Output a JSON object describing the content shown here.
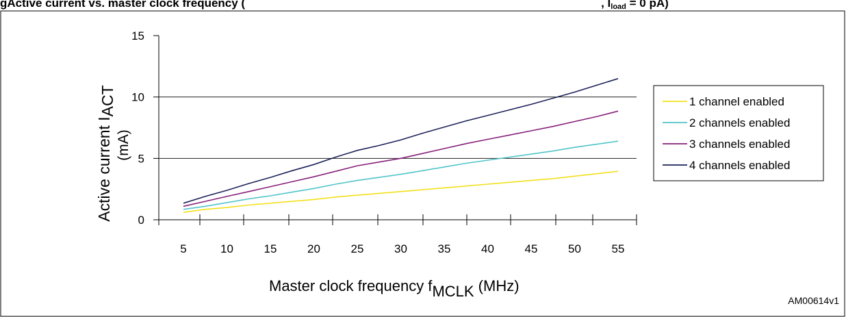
{
  "caption": {
    "fig_prefix": "g",
    "fig_text": "Active current vs. master clock frequency (",
    "cond_text": ", I",
    "cond_sub": "load",
    "cond_tail": " = 0 pA)"
  },
  "chart_data": {
    "type": "line",
    "title": "",
    "xlabel": {
      "main": "Master clock frequency f",
      "sub": "MCLK",
      "tail": " (MHz)"
    },
    "ylabel": {
      "main": "Active current I",
      "sub": "ACT",
      "line2": "(mA)"
    },
    "x_ticks": [
      "5",
      "10",
      "15",
      "20",
      "25",
      "30",
      "35",
      "40",
      "45",
      "50",
      "55"
    ],
    "y_ticks": [
      "0",
      "5",
      "10",
      "15"
    ],
    "ylim": [
      0,
      15
    ],
    "grid": "horizontal",
    "legend_position": "right",
    "x": [
      5,
      7.5,
      10,
      12.5,
      15,
      17.5,
      20,
      22.5,
      25,
      27.5,
      30,
      32.5,
      35,
      37.5,
      40,
      42.5,
      45,
      47.5,
      50,
      52.5,
      55
    ],
    "series": [
      {
        "name": "1 channel enabled",
        "color": "#f2e01a",
        "values": [
          0.6,
          0.85,
          1.0,
          1.2,
          1.35,
          1.5,
          1.65,
          1.85,
          2.0,
          2.15,
          2.3,
          2.45,
          2.6,
          2.75,
          2.9,
          3.05,
          3.2,
          3.35,
          3.55,
          3.75,
          3.95
        ]
      },
      {
        "name": "2 channels enabled",
        "color": "#4fc4c8",
        "values": [
          0.85,
          1.1,
          1.4,
          1.7,
          1.95,
          2.25,
          2.55,
          2.9,
          3.2,
          3.45,
          3.7,
          4.0,
          4.3,
          4.6,
          4.85,
          5.1,
          5.35,
          5.6,
          5.9,
          6.15,
          6.4
        ]
      },
      {
        "name": "3 channels enabled",
        "color": "#86207a",
        "values": [
          1.1,
          1.5,
          1.9,
          2.3,
          2.7,
          3.1,
          3.5,
          3.95,
          4.4,
          4.7,
          5.0,
          5.4,
          5.8,
          6.2,
          6.55,
          6.9,
          7.25,
          7.6,
          8.0,
          8.4,
          8.85
        ]
      },
      {
        "name": "4 channels enabled",
        "color": "#1d2158",
        "values": [
          1.35,
          1.9,
          2.4,
          2.95,
          3.45,
          4.0,
          4.5,
          5.1,
          5.65,
          6.05,
          6.5,
          7.05,
          7.55,
          8.05,
          8.5,
          8.95,
          9.4,
          9.9,
          10.4,
          10.95,
          11.5
        ]
      }
    ],
    "annotation": "AM00614v1"
  }
}
